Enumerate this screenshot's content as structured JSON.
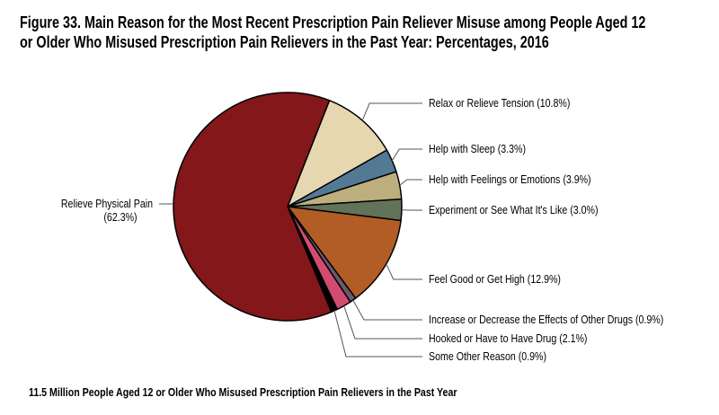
{
  "title_line1": "Figure 33. Main Reason for the Most Recent Prescription Pain Reliever Misuse among People Aged 12",
  "title_line2": "or Older Who Misused Prescription Pain Relievers in the Past Year: Percentages, 2016",
  "footer": "11.5 Million People Aged 12 or Older Who Misused Prescription Pain Relievers in the Past Year",
  "chart_data": {
    "type": "pie",
    "title": "Figure 33. Main Reason for the Most Recent Prescription Pain Reliever Misuse among People Aged 12 or Older Who Misused Prescription Pain Relievers in the Past Year: Percentages, 2016",
    "legend": "none (leader-line labels)",
    "slices": [
      {
        "label": "Relax or Relieve Tension (10.8%)",
        "value": 10.8,
        "color": "#e6d7b0"
      },
      {
        "label": "Help with Sleep (3.3%)",
        "value": 3.3,
        "color": "#527a94"
      },
      {
        "label": "Help with Feelings or Emotions (3.9%)",
        "value": 3.9,
        "color": "#bcaf7d"
      },
      {
        "label": "Experiment or See What It's Like (3.0%)",
        "value": 3.0,
        "color": "#627359"
      },
      {
        "label": "Feel Good or Get High (12.9%)",
        "value": 12.9,
        "color": "#b25d25"
      },
      {
        "label": "Increase or Decrease the Effects of Other Drugs (0.9%)",
        "value": 0.9,
        "color": "#6d5870"
      },
      {
        "label": "Hooked or Have to Have Drug (2.1%)",
        "value": 2.1,
        "color": "#d24c72"
      },
      {
        "label": "Some Other Reason (0.9%)",
        "value": 0.9,
        "color": "#000000"
      },
      {
        "label": "Relieve Physical Pain",
        "label2": "(62.3%)",
        "value": 62.3,
        "color": "#84171a"
      }
    ]
  }
}
